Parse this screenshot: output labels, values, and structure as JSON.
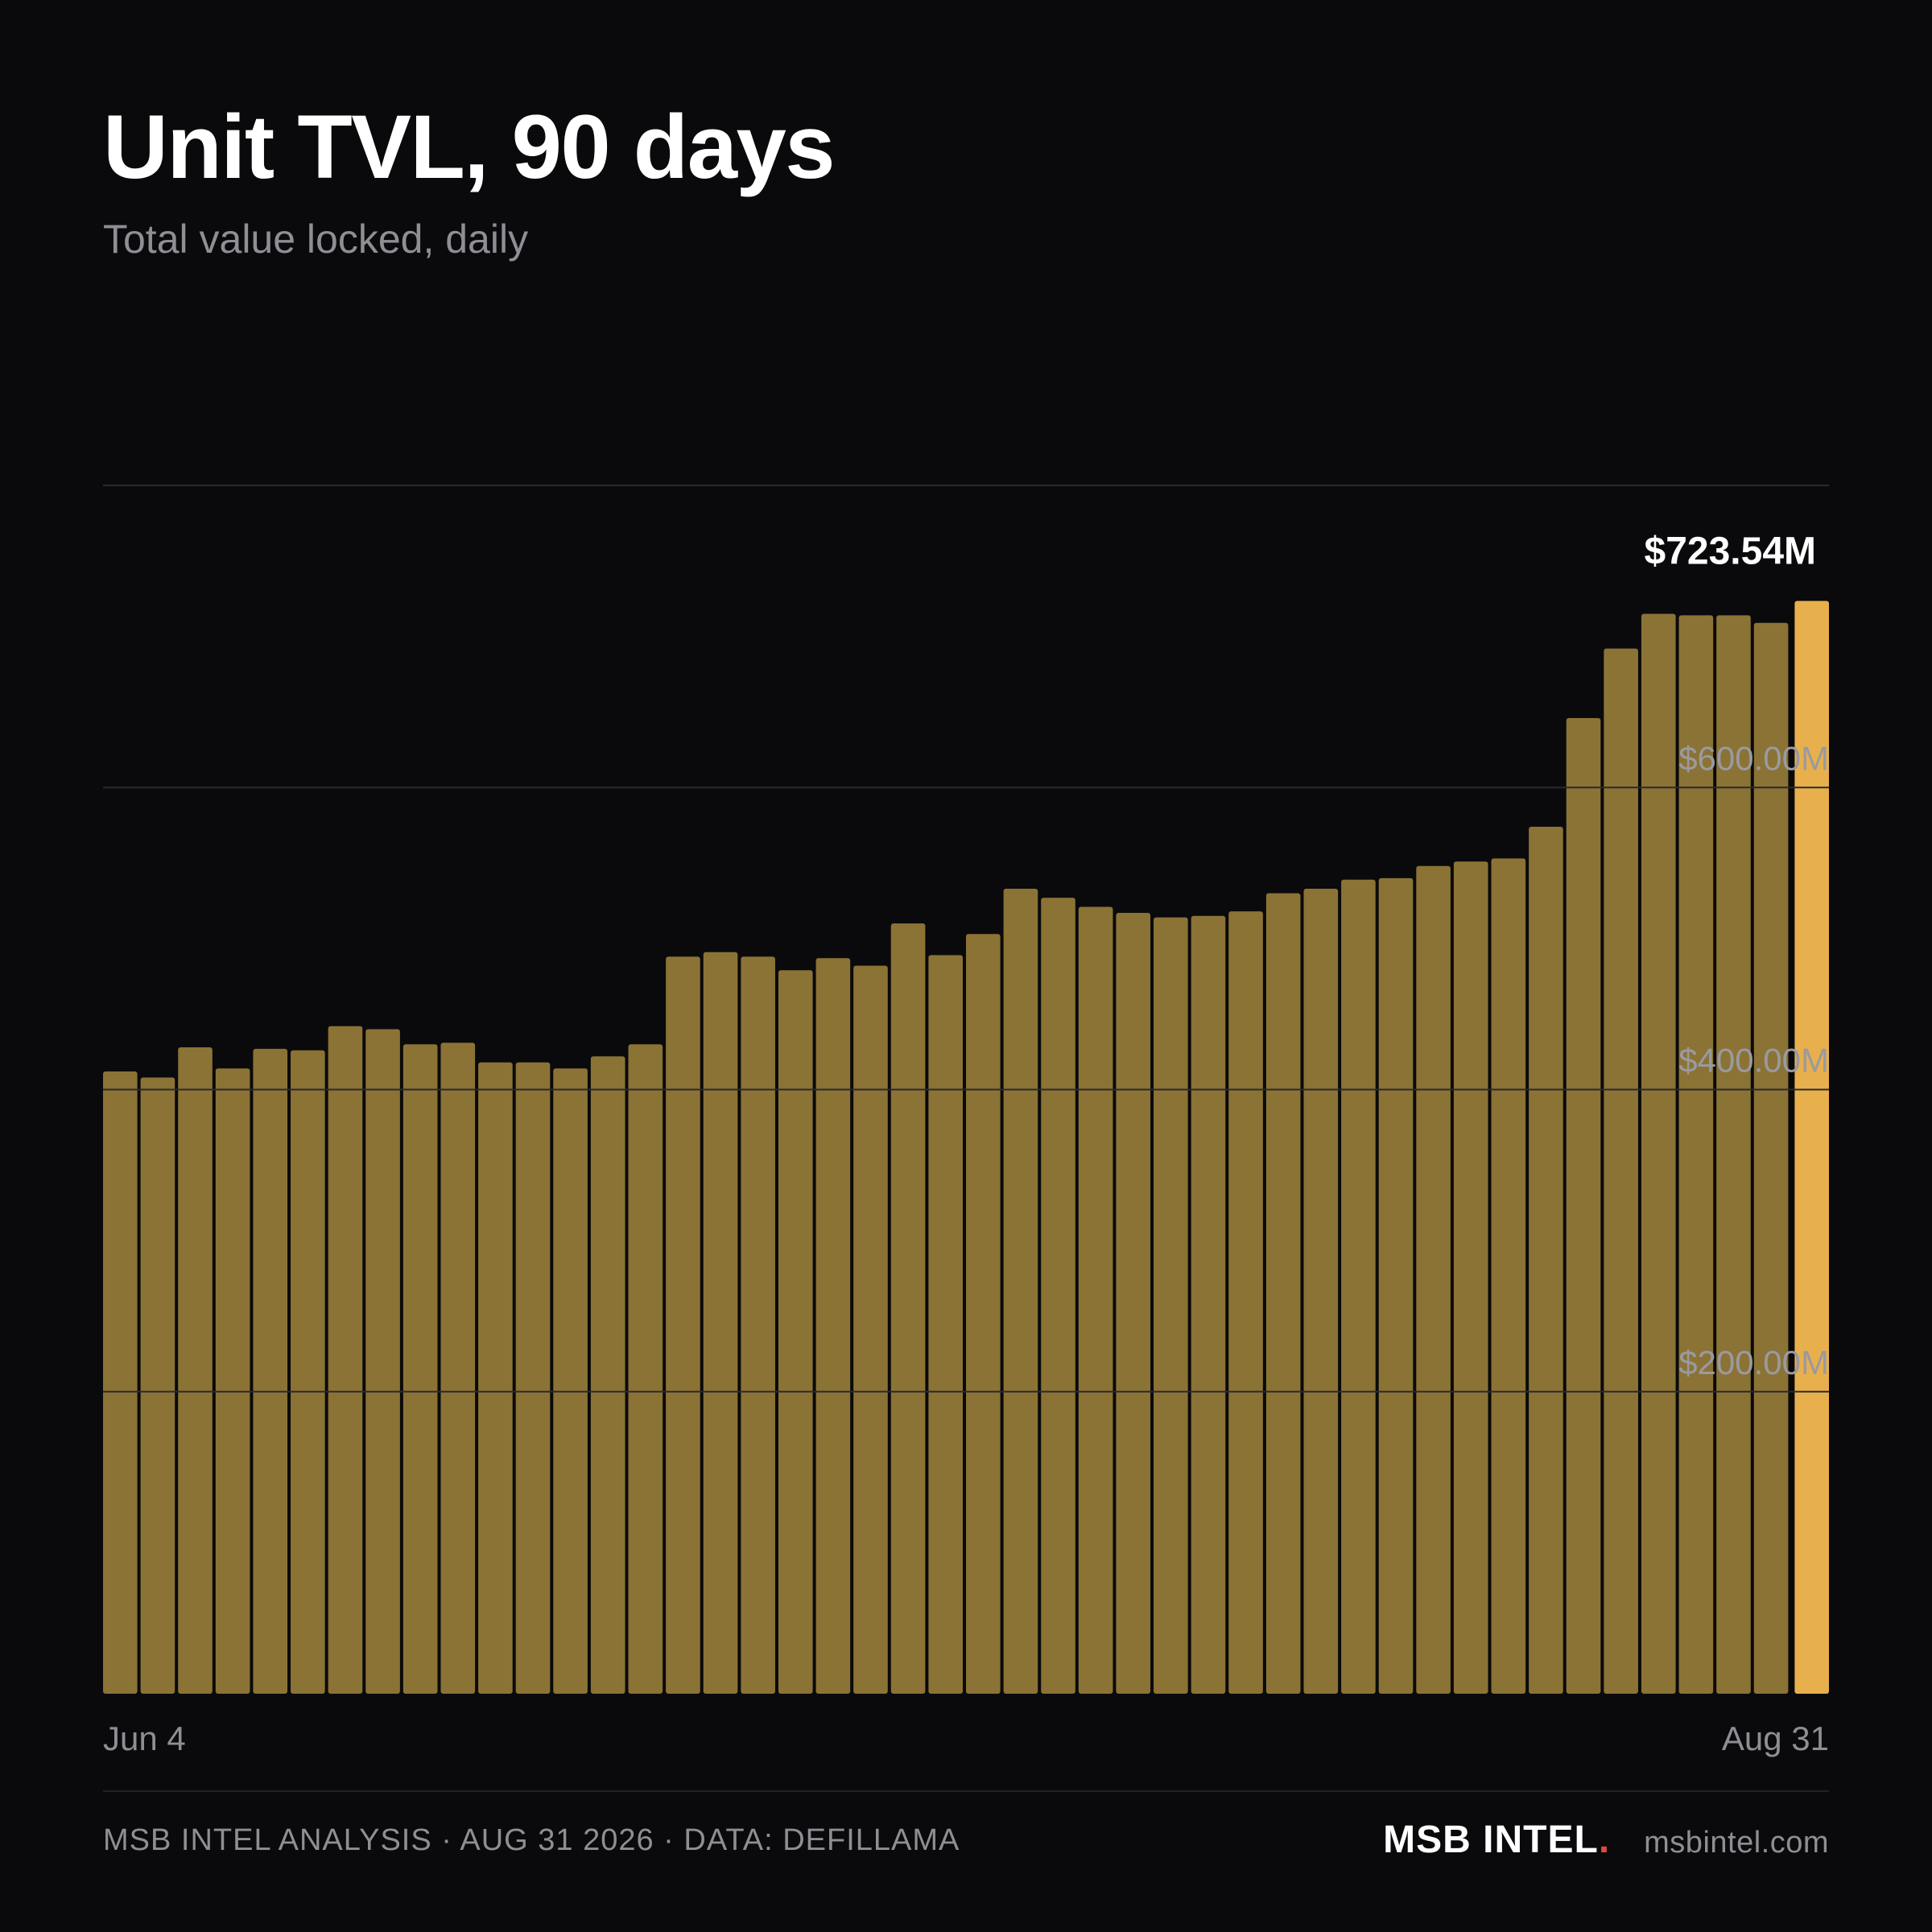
{
  "header": {
    "title": "Unit TVL, 90 days",
    "subtitle": "Total value locked, daily"
  },
  "footer": {
    "left": "MSB INTEL ANALYSIS · AUG 31 2026 · DATA: DEFILLAMA",
    "brand": "MSB INTEL",
    "brand_dot": ".",
    "site": "msbintel.com"
  },
  "colors": {
    "background": "#0a0a0c",
    "bar": "#8b7335",
    "bar_highlight": "#e8b04c",
    "gridline": "#2a2a2e",
    "axis_text": "#8e8e95",
    "brand_dot": "#e04a3a"
  },
  "chart_data": {
    "type": "bar",
    "title": "Unit TVL, 90 days",
    "subtitle": "Total value locked, daily",
    "x_start_label": "Jun 4",
    "x_end_label": "Aug 31",
    "ylim": [
      0,
      800
    ],
    "y_ticks": [
      200,
      400,
      600
    ],
    "y_tick_labels": [
      "$200.00M",
      "$400.00M",
      "$600.00M"
    ],
    "unit": "$M",
    "grid": true,
    "highlight_last": true,
    "highlight_label": "$723.54M",
    "values": [
      412,
      408,
      428,
      414,
      427,
      426,
      442,
      440,
      430,
      431,
      418,
      418,
      414,
      422,
      430,
      488,
      491,
      488,
      479,
      487,
      482,
      510,
      489,
      503,
      533,
      527,
      521,
      517,
      514,
      515,
      518,
      530,
      533,
      539,
      540,
      548,
      551,
      553,
      574,
      646,
      692,
      715,
      714,
      714,
      709,
      723.54
    ]
  }
}
